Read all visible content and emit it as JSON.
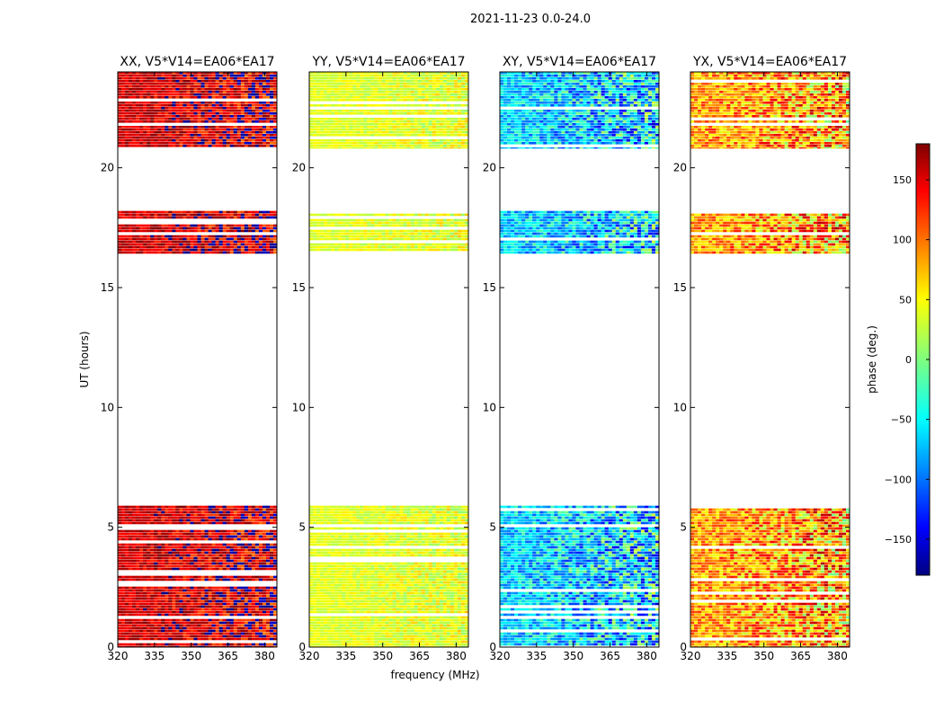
{
  "figure": {
    "suptitle": "2021-11-23 0.0-24.0",
    "xlabel": "frequency (MHz)",
    "ylabel": "UT (hours)"
  },
  "chart_data": {
    "type": "heatmap",
    "suptitle": "2021-11-23 0.0-24.0",
    "xlabel": "frequency (MHz)",
    "ylabel": "UT (hours)",
    "xlim": [
      320,
      385
    ],
    "ylim": [
      0,
      24
    ],
    "xticks": [
      320,
      335,
      350,
      365,
      380
    ],
    "yticks": [
      0,
      5,
      10,
      15,
      20
    ],
    "data_time_ranges_hours": [
      [
        0.0,
        5.9
      ],
      [
        16.4,
        18.2
      ],
      [
        20.8,
        24.0
      ]
    ],
    "panels": [
      {
        "name": "xx",
        "title": "XX, V5*V14=EA06*EA17",
        "mean_phase_deg": 150,
        "spread_deg": 40
      },
      {
        "name": "yy",
        "title": "YY, V5*V14=EA06*EA17",
        "mean_phase_deg": 35,
        "spread_deg": 20
      },
      {
        "name": "xy",
        "title": "XY, V5*V14=EA06*EA17",
        "mean_phase_deg": -60,
        "spread_deg": 60
      },
      {
        "name": "yx",
        "title": "YX, V5*V14=EA06*EA17",
        "mean_phase_deg": 80,
        "spread_deg": 60
      }
    ],
    "colorbar": {
      "label": "phase (deg.)",
      "range": [
        -180,
        180
      ],
      "ticks": [
        -150,
        -100,
        -50,
        0,
        50,
        100,
        150
      ],
      "colormap": "jet"
    }
  }
}
